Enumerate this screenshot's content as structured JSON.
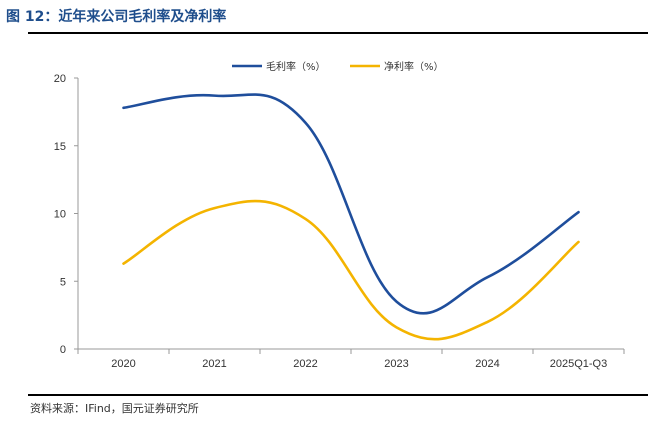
{
  "figure_title": "图 12：近年来公司毛利率及净利率",
  "source_note": "资料来源：IFind，国元证券研究所",
  "colors": {
    "title": "#1f4e8c",
    "series_gross": "#1f4e9c",
    "series_net": "#f4b400"
  },
  "chart_data": {
    "type": "line",
    "categories": [
      "2020",
      "2021",
      "2022",
      "2023",
      "2024",
      "2025Q1-Q3"
    ],
    "series": [
      {
        "name": "毛利率（%）",
        "values": [
          17.8,
          18.7,
          16.7,
          3.5,
          5.3,
          10.1
        ]
      },
      {
        "name": "净利率（%）",
        "values": [
          6.3,
          10.4,
          9.6,
          1.6,
          2.0,
          7.9
        ]
      }
    ],
    "ylim": [
      0,
      20
    ],
    "yticks": [
      "0",
      "5",
      "10",
      "15",
      "20"
    ],
    "legend": "top-center",
    "grid": false,
    "smooth": true
  }
}
